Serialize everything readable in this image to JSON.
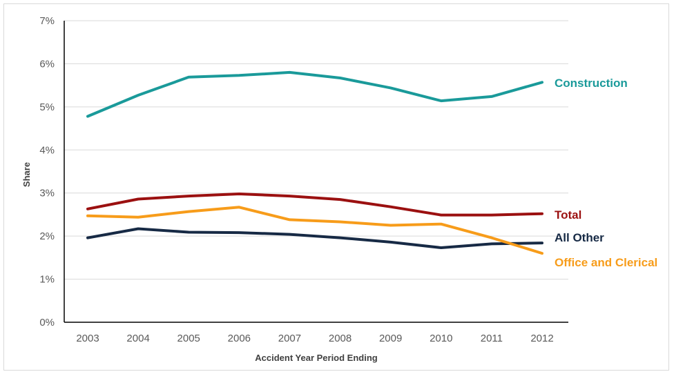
{
  "chart_data": {
    "type": "line",
    "title": "",
    "xlabel": "Accident Year Period Ending",
    "ylabel": "Share",
    "x": [
      "2003",
      "2004",
      "2005",
      "2006",
      "2007",
      "2008",
      "2009",
      "2010",
      "2011",
      "2012"
    ],
    "ylim": [
      0,
      7
    ],
    "yticks": [
      "0%",
      "1%",
      "2%",
      "3%",
      "4%",
      "5%",
      "6%",
      "7%"
    ],
    "grid": true,
    "legend": "end-of-line labels",
    "series": [
      {
        "name": "Construction",
        "color": "#1a9a9a",
        "values": [
          4.78,
          5.27,
          5.69,
          5.73,
          5.8,
          5.67,
          5.44,
          5.14,
          5.24,
          5.57
        ]
      },
      {
        "name": "Total",
        "color": "#9b1010",
        "values": [
          2.63,
          2.86,
          2.93,
          2.98,
          2.93,
          2.85,
          2.68,
          2.49,
          2.49,
          2.52
        ]
      },
      {
        "name": "All Other",
        "color": "#172a45",
        "values": [
          1.96,
          2.17,
          2.09,
          2.08,
          2.04,
          1.96,
          1.86,
          1.73,
          1.82,
          1.84
        ]
      },
      {
        "name": "Office and Clerical",
        "color": "#f79c1a",
        "values": [
          2.47,
          2.44,
          2.57,
          2.67,
          2.38,
          2.33,
          2.25,
          2.28,
          1.96,
          1.6
        ]
      }
    ]
  }
}
